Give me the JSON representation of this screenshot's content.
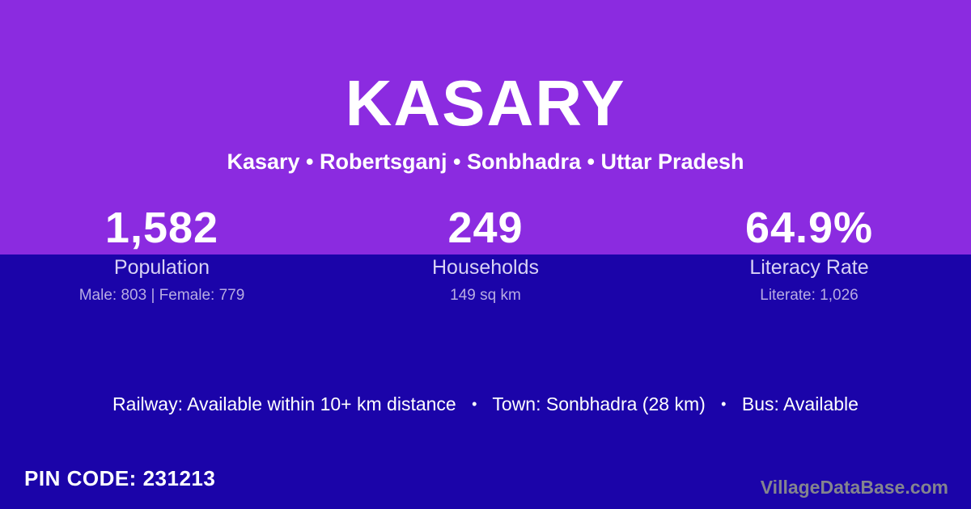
{
  "header": {
    "title": "KASARY",
    "subtitle": "Kasary • Robertsganj • Sonbhadra • Uttar Pradesh"
  },
  "stats": [
    {
      "value": "1,582",
      "label": "Population",
      "sub": "Male: 803 | Female: 779"
    },
    {
      "value": "249",
      "label": "Households",
      "sub": "149 sq km"
    },
    {
      "value": "64.9%",
      "label": "Literacy Rate",
      "sub": "Literate: 1,026"
    }
  ],
  "transport": {
    "items": [
      "Railway: Available within 10+ km distance",
      "Town: Sonbhadra (28 km)",
      "Bus: Available"
    ],
    "separator": "•"
  },
  "footer": {
    "pin_code": "PIN CODE: 231213",
    "watermark": "VillageDataBase.com"
  },
  "colors": {
    "top_background": "#8b2be0",
    "bottom_background": "#1b04a9",
    "text_primary": "#ffffff",
    "stat_label": "#d8d2f4",
    "stat_sublabel": "#b7ace2",
    "watermark": "#84848e"
  }
}
